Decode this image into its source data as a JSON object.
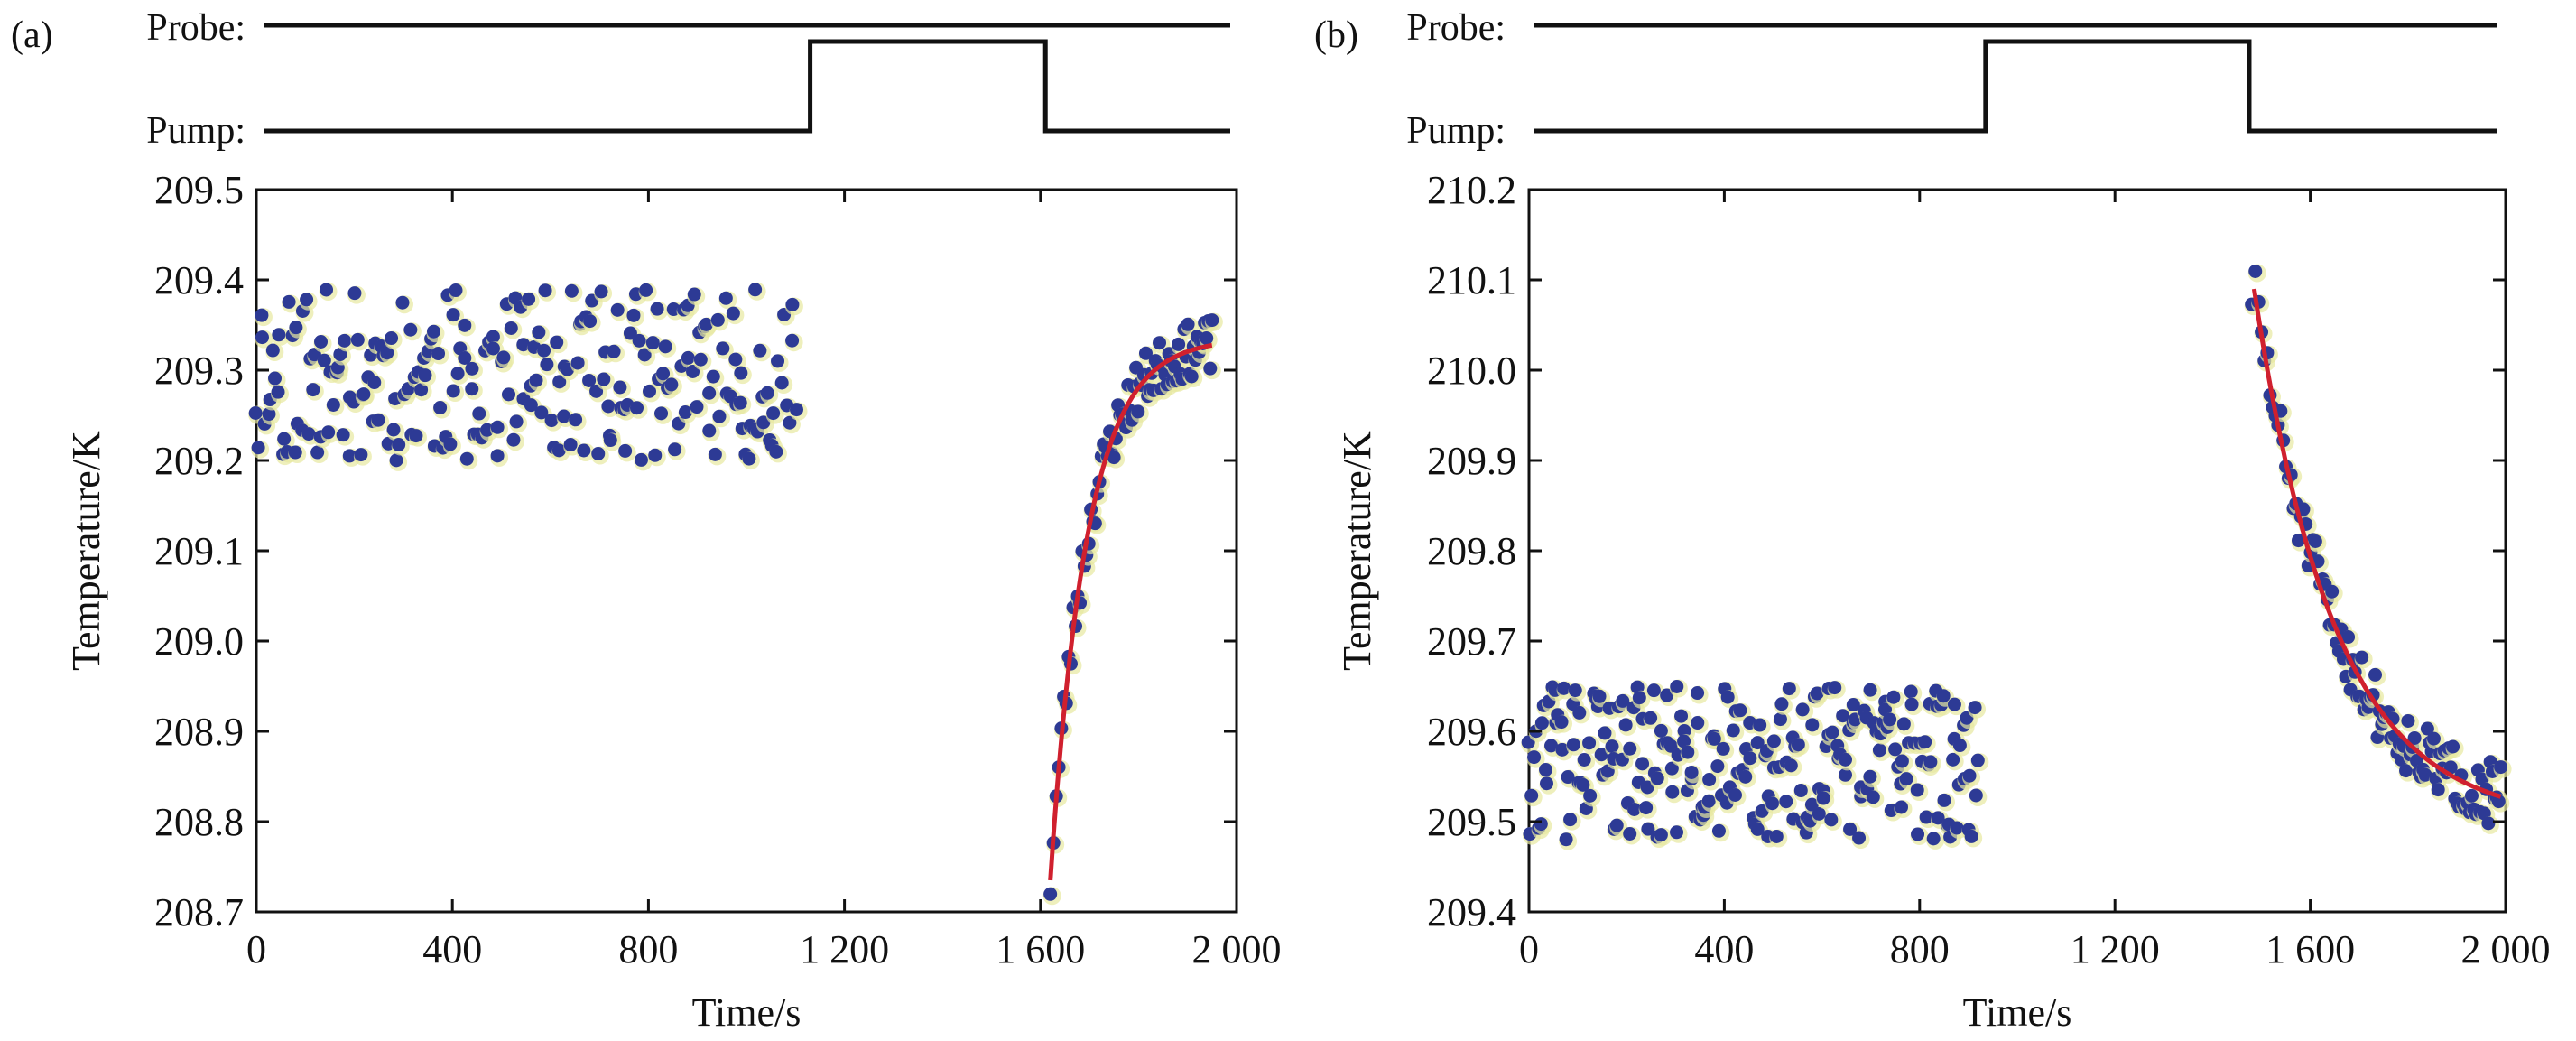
{
  "chart_data": [
    {
      "panel_label": "(a)",
      "type": "scatter",
      "xlabel": "Time/s",
      "ylabel": "Temperature/K",
      "xlim": [
        0,
        2000
      ],
      "ylim": [
        208.7,
        209.5
      ],
      "x_ticks": [
        {
          "value": 0,
          "label": "0"
        },
        {
          "value": 400,
          "label": "400"
        },
        {
          "value": 800,
          "label": "800"
        },
        {
          "value": 1200,
          "label": "1 200"
        },
        {
          "value": 1600,
          "label": "1 600"
        },
        {
          "value": 2000,
          "label": "2 000"
        }
      ],
      "y_ticks": [
        {
          "value": 208.7,
          "label": "208.7"
        },
        {
          "value": 208.8,
          "label": "208.8"
        },
        {
          "value": 208.9,
          "label": "208.9"
        },
        {
          "value": 209.0,
          "label": "209.0"
        },
        {
          "value": 209.1,
          "label": "209.1"
        },
        {
          "value": 209.2,
          "label": "209.2"
        },
        {
          "value": 209.3,
          "label": "209.3"
        },
        {
          "value": 209.4,
          "label": "209.4"
        },
        {
          "value": 209.5,
          "label": "209.5"
        }
      ],
      "timing": {
        "probe_label": "Probe:",
        "pump_label": "Pump:",
        "pump_on": 1130,
        "pump_off": 1610
      },
      "baseline": {
        "x_start": 0,
        "x_end": 1100,
        "count": 230,
        "y_min": 209.2,
        "y_max": 209.39,
        "seed": 11
      },
      "recovery": {
        "x_start": 1620,
        "x_end": 1950,
        "count": 80,
        "seed": 23,
        "noise": 0.03
      },
      "fit": {
        "model": "exp_rise",
        "x_start": 1620,
        "x_end": 1950,
        "y_inf": 209.335,
        "amplitude": 0.6,
        "tau": 75
      }
    },
    {
      "panel_label": "(b)",
      "type": "scatter",
      "xlabel": "Time/s",
      "ylabel": "Temperature/K",
      "xlim": [
        0,
        2000
      ],
      "ylim": [
        209.4,
        210.2
      ],
      "x_ticks": [
        {
          "value": 0,
          "label": "0"
        },
        {
          "value": 400,
          "label": "400"
        },
        {
          "value": 800,
          "label": "800"
        },
        {
          "value": 1200,
          "label": "1 200"
        },
        {
          "value": 1600,
          "label": "1 600"
        },
        {
          "value": 2000,
          "label": "2 000"
        }
      ],
      "y_ticks": [
        {
          "value": 209.4,
          "label": "209.4"
        },
        {
          "value": 209.5,
          "label": "209.5"
        },
        {
          "value": 209.6,
          "label": "209.6"
        },
        {
          "value": 209.7,
          "label": "209.7"
        },
        {
          "value": 209.8,
          "label": "209.8"
        },
        {
          "value": 209.9,
          "label": "209.9"
        },
        {
          "value": 210.0,
          "label": "210.0"
        },
        {
          "value": 210.1,
          "label": "210.1"
        },
        {
          "value": 210.2,
          "label": "210.2"
        }
      ],
      "timing": {
        "probe_label": "Probe:",
        "pump_label": "Pump:",
        "pump_on": 935,
        "pump_off": 1475
      },
      "baseline": {
        "x_start": 0,
        "x_end": 920,
        "count": 240,
        "y_min": 209.48,
        "y_max": 209.65,
        "seed": 37
      },
      "recovery": {
        "x_start": 1480,
        "x_end": 1990,
        "count": 110,
        "seed": 51,
        "noise": 0.035
      },
      "fit": {
        "model": "exp_decay",
        "x_start": 1485,
        "x_end": 1990,
        "y_inf": 209.5,
        "amplitude": 0.59,
        "tau": 165
      }
    }
  ],
  "colors": {
    "points": "#2d3a95",
    "fit": "#d0202e",
    "axis": "#111111",
    "halo": "#e7e8a0"
  }
}
